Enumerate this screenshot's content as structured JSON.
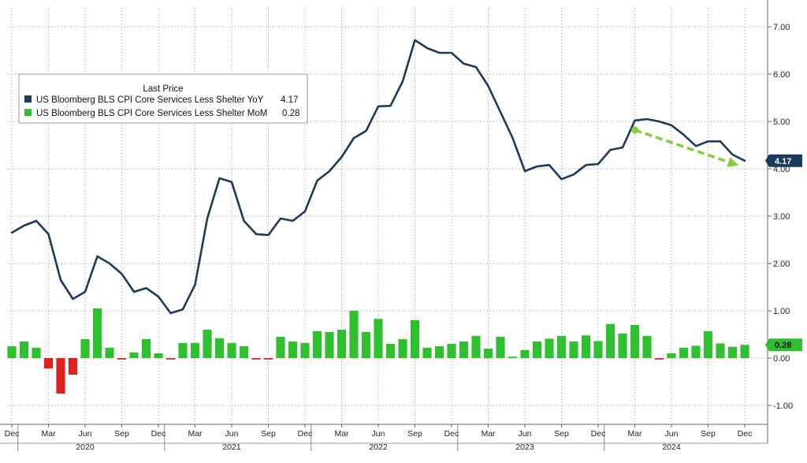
{
  "chart_data": {
    "type": "line",
    "title": "",
    "legend": {
      "title": "Last Price",
      "placement": "top-left",
      "entries": [
        {
          "label": "US Bloomberg BLS CPI Core Services Less Shelter YoY",
          "value": "4.17",
          "color": "#1b3a5c"
        },
        {
          "label": "US Bloomberg BLS CPI Core Services Less Shelter MoM",
          "value": "0.28",
          "color": "#2fc02f"
        }
      ]
    },
    "y_axis": {
      "position": "right",
      "ylim": [
        -1.4,
        7.4
      ],
      "ticks": [
        "7.00",
        "6.00",
        "5.00",
        "4.00",
        "3.00",
        "2.00",
        "1.00",
        "0.00",
        "-1.00"
      ],
      "tick_values": [
        7,
        6,
        5,
        4,
        3,
        2,
        1,
        0,
        -1
      ]
    },
    "x_axis": {
      "start": "2019-12",
      "end": "2024-12",
      "month_labels": [
        {
          "i": 0,
          "label": "Dec"
        },
        {
          "i": 3,
          "label": "Mar"
        },
        {
          "i": 6,
          "label": "Jun"
        },
        {
          "i": 9,
          "label": "Sep"
        },
        {
          "i": 12,
          "label": "Dec"
        },
        {
          "i": 15,
          "label": "Mar"
        },
        {
          "i": 18,
          "label": "Jun"
        },
        {
          "i": 21,
          "label": "Sep"
        },
        {
          "i": 24,
          "label": "Dec"
        },
        {
          "i": 27,
          "label": "Mar"
        },
        {
          "i": 30,
          "label": "Jun"
        },
        {
          "i": 33,
          "label": "Sep"
        },
        {
          "i": 36,
          "label": "Dec"
        },
        {
          "i": 39,
          "label": "Mar"
        },
        {
          "i": 42,
          "label": "Jun"
        },
        {
          "i": 45,
          "label": "Sep"
        },
        {
          "i": 48,
          "label": "Dec"
        },
        {
          "i": 51,
          "label": "Mar"
        },
        {
          "i": 54,
          "label": "Jun"
        },
        {
          "i": 57,
          "label": "Sep"
        },
        {
          "i": 60,
          "label": "Dec"
        }
      ],
      "year_labels": [
        {
          "i": 6,
          "label": "2020"
        },
        {
          "i": 18,
          "label": "2021"
        },
        {
          "i": 30,
          "label": "2022"
        },
        {
          "i": 42,
          "label": "2023"
        },
        {
          "i": 54,
          "label": "2024"
        }
      ],
      "year_separators": [
        1,
        13,
        25,
        37,
        49
      ]
    },
    "grid": true,
    "series": [
      {
        "name": "US Bloomberg BLS CPI Core Services Less Shelter YoY",
        "type": "line",
        "color": "#1b3a5c",
        "values": [
          2.65,
          2.8,
          2.9,
          2.62,
          1.65,
          1.25,
          1.4,
          2.15,
          2.0,
          1.78,
          1.4,
          1.48,
          1.3,
          0.95,
          1.03,
          1.55,
          2.95,
          3.8,
          3.72,
          2.9,
          2.62,
          2.6,
          2.95,
          2.9,
          3.1,
          3.75,
          3.95,
          4.25,
          4.65,
          4.8,
          5.32,
          5.33,
          5.85,
          6.72,
          6.55,
          6.45,
          6.45,
          6.22,
          6.15,
          5.75,
          5.2,
          4.65,
          3.95,
          4.05,
          4.08,
          3.78,
          3.88,
          4.08,
          4.1,
          4.4,
          4.45,
          5.02,
          5.05,
          5.0,
          4.92,
          4.72,
          4.48,
          4.58,
          4.58,
          4.3,
          4.17
        ]
      },
      {
        "name": "US Bloomberg BLS CPI Core Services Less Shelter MoM",
        "type": "bar",
        "color": "#2fc02f",
        "negative_color": "#e02020",
        "values": [
          0.25,
          0.35,
          0.22,
          -0.22,
          -0.75,
          -0.35,
          0.4,
          1.05,
          0.22,
          -0.03,
          0.12,
          0.4,
          0.1,
          -0.03,
          0.32,
          0.32,
          0.6,
          0.42,
          0.32,
          0.25,
          -0.03,
          -0.03,
          0.45,
          0.35,
          0.32,
          0.57,
          0.55,
          0.6,
          1.0,
          0.55,
          0.83,
          0.3,
          0.4,
          0.8,
          0.22,
          0.25,
          0.3,
          0.35,
          0.47,
          0.2,
          0.45,
          0.03,
          0.17,
          0.35,
          0.41,
          0.47,
          0.35,
          0.48,
          0.36,
          0.72,
          0.52,
          0.7,
          0.47,
          -0.03,
          0.1,
          0.22,
          0.26,
          0.57,
          0.31,
          0.24,
          0.28
        ]
      }
    ],
    "badges": [
      {
        "series": 0,
        "text": "4.17",
        "bg": "#1b3a5c",
        "fg": "#ffffff"
      },
      {
        "series": 1,
        "text": "0.28",
        "bg": "#2fc02f",
        "fg": "#111111"
      }
    ],
    "annotations": [
      {
        "type": "arrow",
        "style": "dashed",
        "color": "#7fcf3f",
        "from": {
          "x_index": 51,
          "y": 4.82
        },
        "to": {
          "x_index": 59.5,
          "y": 4.07
        }
      }
    ]
  }
}
